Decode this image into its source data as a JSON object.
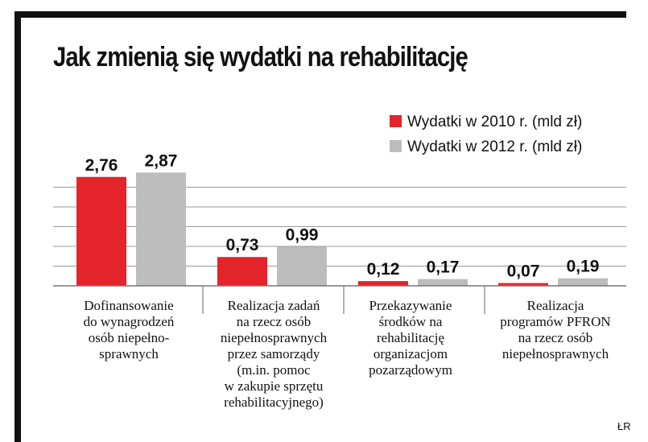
{
  "colors": {
    "series_2010": "#e3242b",
    "series_2012": "#bdbdbd",
    "grid": "#9a9a9a",
    "frame": "#111111"
  },
  "chart_data": {
    "type": "bar",
    "title": "Jak zmienią się wydatki na rehabilitację",
    "categories": [
      [
        "Dofinansowanie",
        "do wynagrodzeń",
        "osób niepełno-",
        "sprawnych"
      ],
      [
        "Realizacja zadań",
        "na rzecz osób",
        "niepełnosprawnych",
        "przez samorządy",
        "(m.in. pomoc",
        "w zakupie sprzętu",
        "rehabilitacyjnego)"
      ],
      [
        "Przekazywanie",
        "środków na",
        "rehabilitację",
        "organizacjom",
        "pozarządowym"
      ],
      [
        "Realizacja",
        "programów PFRON",
        "na rzecz osób",
        "niepełnosprawnych"
      ]
    ],
    "series": [
      {
        "name": "Wydatki w 2010 r. (mld zł)",
        "values": [
          2.76,
          0.73,
          0.12,
          0.07
        ],
        "labels": [
          "2,76",
          "0,73",
          "0,12",
          "0,07"
        ]
      },
      {
        "name": "Wydatki w 2012 r. (mld zł)",
        "values": [
          2.87,
          0.99,
          0.17,
          0.19
        ],
        "labels": [
          "2,87",
          "0,99",
          "0,17",
          "0,19"
        ]
      }
    ],
    "ylim": [
      0,
      5
    ],
    "gridlines": [
      0.5,
      1.0,
      1.5,
      2.0,
      2.5
    ],
    "legend_position": "top-right",
    "xlabel": "",
    "ylabel": "",
    "source": "ŁR"
  }
}
